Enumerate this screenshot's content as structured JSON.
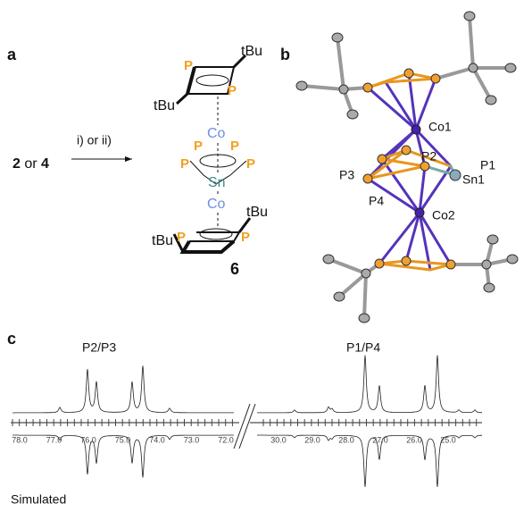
{
  "panel_a": {
    "label": "a",
    "reactant": {
      "first": "2",
      "joiner": "or",
      "second": "4"
    },
    "conditions": "i) or ii)",
    "compound": "6",
    "top_ring": {
      "p_left": "P",
      "p_right": "P",
      "tbu_right": "tBu",
      "tbu_left": "tBu"
    },
    "metal_top": "Co",
    "middle_ring": {
      "p_top_left": "P",
      "p_top_right": "P",
      "p_left": "P",
      "p_right": "P"
    },
    "tin": "Sn",
    "metal_bottom": "Co",
    "bottom_ring": {
      "p_left": "P",
      "p_right": "P",
      "tbu_right": "tBu",
      "tbu_left": "tBu"
    }
  },
  "panel_b": {
    "label": "b",
    "atoms": {
      "co1": "Co1",
      "co2": "Co2",
      "p1": "P1",
      "p2": "P2",
      "p3": "P3",
      "p4": "P4",
      "sn1": "Sn1"
    }
  },
  "panel_c": {
    "label": "c",
    "peak_left": "P2/P3",
    "peak_right": "P1/P4",
    "simulated": "Simulated",
    "axis_left": [
      "78.0",
      "77.0",
      "76.0",
      "75.0",
      "74.0",
      "73.0",
      "72.0"
    ],
    "axis_right": [
      "30.0",
      "29.0",
      "28.0",
      "27.0",
      "26.0",
      "25.0"
    ]
  }
}
